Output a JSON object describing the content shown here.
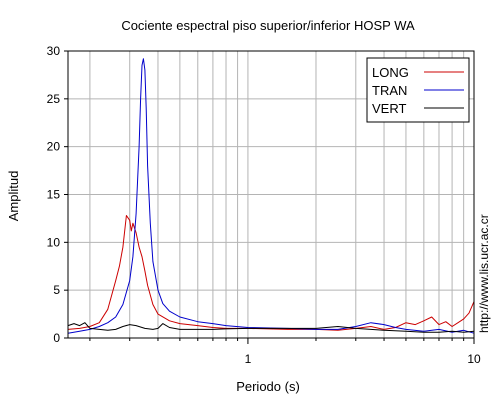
{
  "chart_data": {
    "type": "line",
    "title": "Cociente espectral piso superior/inferior  HOSP WA",
    "xlabel": "Periodo (s)",
    "ylabel": "Amplitud",
    "x_scale": "log",
    "xlim": [
      0.16,
      10
    ],
    "ylim": [
      0,
      30
    ],
    "grid": true,
    "legend_position": "top-right",
    "x_tick_labels": [
      {
        "value": 1,
        "label": "1"
      },
      {
        "value": 10,
        "label": "10"
      }
    ],
    "y_tick_labels": [
      {
        "value": 0,
        "label": "0"
      },
      {
        "value": 5,
        "label": "5"
      },
      {
        "value": 10,
        "label": "10"
      },
      {
        "value": 15,
        "label": "15"
      },
      {
        "value": 20,
        "label": "20"
      },
      {
        "value": 25,
        "label": "25"
      },
      {
        "value": 30,
        "label": "30"
      }
    ],
    "series": [
      {
        "name": "LONG",
        "color": "#cc0000",
        "points": [
          [
            0.16,
            0.9
          ],
          [
            0.18,
            1.0
          ],
          [
            0.2,
            1.2
          ],
          [
            0.22,
            1.6
          ],
          [
            0.24,
            3.0
          ],
          [
            0.26,
            6.0
          ],
          [
            0.27,
            7.5
          ],
          [
            0.28,
            9.5
          ],
          [
            0.29,
            12.8
          ],
          [
            0.3,
            12.3
          ],
          [
            0.305,
            11.2
          ],
          [
            0.31,
            12.0
          ],
          [
            0.32,
            11.0
          ],
          [
            0.33,
            9.5
          ],
          [
            0.34,
            8.5
          ],
          [
            0.35,
            7.0
          ],
          [
            0.36,
            5.5
          ],
          [
            0.38,
            3.5
          ],
          [
            0.4,
            2.5
          ],
          [
            0.45,
            1.8
          ],
          [
            0.5,
            1.5
          ],
          [
            0.6,
            1.3
          ],
          [
            0.7,
            1.1
          ],
          [
            0.8,
            1.0
          ],
          [
            1.0,
            1.0
          ],
          [
            1.5,
            0.9
          ],
          [
            2.0,
            0.9
          ],
          [
            2.5,
            0.8
          ],
          [
            3.0,
            1.0
          ],
          [
            3.5,
            1.2
          ],
          [
            4.0,
            0.9
          ],
          [
            4.5,
            1.1
          ],
          [
            5.0,
            1.6
          ],
          [
            5.5,
            1.4
          ],
          [
            6.0,
            1.8
          ],
          [
            6.5,
            2.2
          ],
          [
            7.0,
            1.4
          ],
          [
            7.5,
            1.7
          ],
          [
            8.0,
            1.2
          ],
          [
            8.5,
            1.6
          ],
          [
            9.0,
            2.0
          ],
          [
            9.5,
            2.6
          ],
          [
            10.0,
            3.8
          ]
        ]
      },
      {
        "name": "TRAN",
        "color": "#0000cc",
        "points": [
          [
            0.16,
            0.5
          ],
          [
            0.18,
            0.7
          ],
          [
            0.2,
            0.9
          ],
          [
            0.22,
            1.2
          ],
          [
            0.24,
            1.6
          ],
          [
            0.26,
            2.2
          ],
          [
            0.28,
            3.5
          ],
          [
            0.3,
            6.0
          ],
          [
            0.31,
            8.5
          ],
          [
            0.32,
            13.0
          ],
          [
            0.33,
            20.0
          ],
          [
            0.335,
            25.0
          ],
          [
            0.34,
            28.5
          ],
          [
            0.345,
            29.2
          ],
          [
            0.35,
            28.0
          ],
          [
            0.355,
            24.0
          ],
          [
            0.36,
            18.0
          ],
          [
            0.37,
            12.0
          ],
          [
            0.38,
            8.0
          ],
          [
            0.4,
            5.0
          ],
          [
            0.42,
            3.6
          ],
          [
            0.45,
            2.8
          ],
          [
            0.5,
            2.2
          ],
          [
            0.6,
            1.7
          ],
          [
            0.7,
            1.5
          ],
          [
            0.8,
            1.3
          ],
          [
            1.0,
            1.1
          ],
          [
            1.5,
            1.0
          ],
          [
            2.0,
            0.9
          ],
          [
            2.5,
            0.9
          ],
          [
            3.0,
            1.2
          ],
          [
            3.5,
            1.6
          ],
          [
            4.0,
            1.4
          ],
          [
            4.5,
            1.1
          ],
          [
            5.0,
            0.9
          ],
          [
            6.0,
            0.7
          ],
          [
            7.0,
            0.9
          ],
          [
            8.0,
            0.6
          ],
          [
            9.0,
            0.8
          ],
          [
            10.0,
            0.5
          ]
        ]
      },
      {
        "name": "VERT",
        "color": "#000000",
        "points": [
          [
            0.16,
            1.3
          ],
          [
            0.17,
            1.5
          ],
          [
            0.18,
            1.3
          ],
          [
            0.19,
            1.6
          ],
          [
            0.2,
            1.0
          ],
          [
            0.22,
            0.9
          ],
          [
            0.24,
            0.8
          ],
          [
            0.26,
            0.9
          ],
          [
            0.28,
            1.2
          ],
          [
            0.3,
            1.4
          ],
          [
            0.32,
            1.3
          ],
          [
            0.35,
            1.0
          ],
          [
            0.38,
            0.9
          ],
          [
            0.4,
            1.0
          ],
          [
            0.42,
            1.5
          ],
          [
            0.45,
            1.1
          ],
          [
            0.5,
            0.9
          ],
          [
            0.6,
            0.9
          ],
          [
            0.7,
            0.9
          ],
          [
            0.8,
            0.95
          ],
          [
            1.0,
            1.0
          ],
          [
            1.5,
            1.0
          ],
          [
            2.0,
            1.0
          ],
          [
            2.5,
            1.2
          ],
          [
            3.0,
            1.0
          ],
          [
            3.5,
            0.9
          ],
          [
            4.0,
            0.8
          ],
          [
            5.0,
            0.7
          ],
          [
            6.0,
            0.6
          ],
          [
            7.0,
            0.6
          ],
          [
            8.0,
            0.7
          ],
          [
            9.0,
            0.6
          ],
          [
            10.0,
            0.7
          ]
        ]
      }
    ]
  },
  "side_note": "http://www.lis.ucr.ac.cr"
}
